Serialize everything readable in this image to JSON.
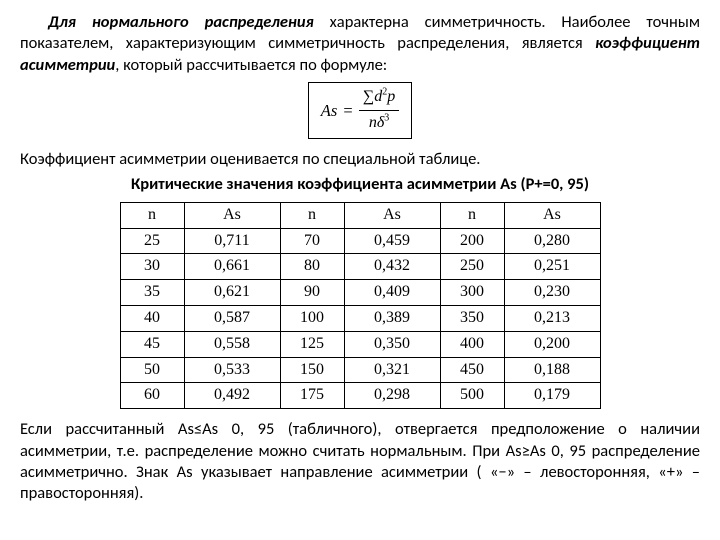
{
  "text": {
    "p1_a": "Для нормального распределения",
    "p1_b": " характерна симметричность. Наиболее точным показателем, характеризующим симметричность распределения, является ",
    "p1_c": "коэффициент асимметрии",
    "p1_d": ", который рассчитывается по формуле:",
    "formula": {
      "lhs": "As",
      "eq": "=",
      "num_a": "∑",
      "num_b": "d",
      "num_sup": "2",
      "num_c": "p",
      "den_a": "n",
      "den_b": "δ",
      "den_sup": "3"
    },
    "p2": "Коэффициент  асимметрии оценивается по специальной таблице.",
    "h2": "Критические  значения коэффициента асимметрии Аs (Р+=0, 95)",
    "p3": "Если  рассчитанный As≤As 0, 95 (табличного), отвергается предположение о наличии асимметрии, т.е. распределение можно считать нормальным. При As≥As 0, 95 распределение асимметрично. Знак As указывает направление асимметрии  ( «−» – левосторонняя, «+» – правосторонняя)."
  },
  "table": {
    "headers": [
      "n",
      "As",
      "n",
      "As",
      "n",
      "As"
    ],
    "col_classes": [
      "c-n",
      "c-as",
      "c-n",
      "c-as",
      "c-n",
      "c-as"
    ],
    "rows": [
      [
        "25",
        "0,711",
        "70",
        "0,459",
        "200",
        "0,280"
      ],
      [
        "30",
        "0,661",
        "80",
        "0,432",
        "250",
        "0,251"
      ],
      [
        "35",
        "0,621",
        "90",
        "0,409",
        "300",
        "0,230"
      ],
      [
        "40",
        "0,587",
        "100",
        "0,389",
        "350",
        "0,213"
      ],
      [
        "45",
        "0,558",
        "125",
        "0,350",
        "400",
        "0,200"
      ],
      [
        "50",
        "0,533",
        "150",
        "0,321",
        "450",
        "0,188"
      ],
      [
        "60",
        "0,492",
        "175",
        "0,298",
        "500",
        "0,179"
      ]
    ]
  }
}
